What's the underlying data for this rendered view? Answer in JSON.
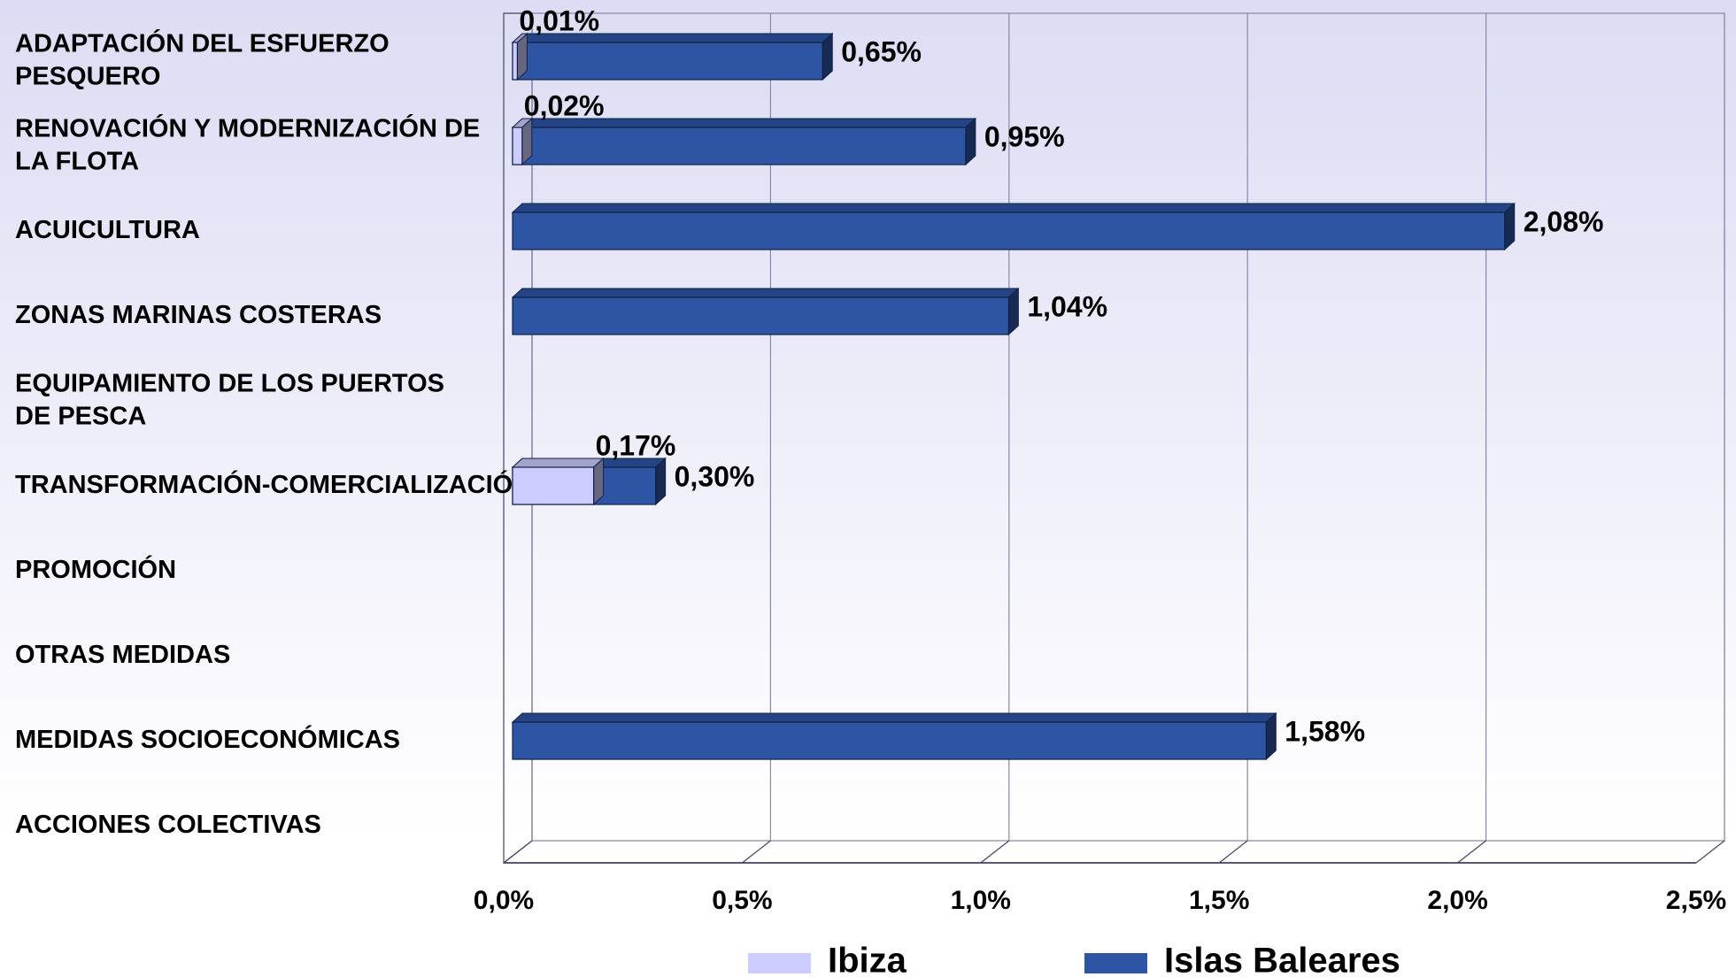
{
  "chart_data": {
    "type": "bar3d",
    "categories": [
      "ADAPTACIÓN DEL ESFUERZO PESQUERO",
      "RENOVACIÓN Y MODERNIZACIÓN DE LA FLOTA",
      "ACUICULTURA",
      "ZONAS MARINAS COSTERAS",
      "EQUIPAMIENTO DE LOS PUERTOS DE PESCA",
      "TRANSFORMACIÓN-COMERCIALIZACIÓN",
      "PROMOCIÓN",
      "OTRAS MEDIDAS",
      "MEDIDAS SOCIOECONÓMICAS",
      "ACCIONES COLECTIVAS"
    ],
    "series": [
      {
        "name": "Ibiza",
        "color": "#ccccff",
        "values": [
          0.01,
          0.02,
          null,
          null,
          null,
          0.17,
          null,
          null,
          null,
          null
        ],
        "value_labels": [
          "0,01%",
          "0,02%",
          null,
          null,
          null,
          "0,17%",
          null,
          null,
          null,
          null
        ]
      },
      {
        "name": "Islas Baleares",
        "color": "#2e55a4",
        "values": [
          0.65,
          0.95,
          2.08,
          1.04,
          null,
          0.3,
          null,
          null,
          1.58,
          null
        ],
        "value_labels": [
          "0,65%",
          "0,95%",
          "2,08%",
          "1,04%",
          null,
          "0,30%",
          null,
          null,
          "1,58%",
          null
        ]
      }
    ],
    "xlim": [
      0,
      2.5
    ],
    "xticks": [
      {
        "value": 0,
        "label": "0,0%"
      },
      {
        "value": 0.5,
        "label": "0,5%"
      },
      {
        "value": 1,
        "label": "1,0%"
      },
      {
        "value": 1.5,
        "label": "1,5%"
      },
      {
        "value": 2,
        "label": "2,0%"
      },
      {
        "value": 2.5,
        "label": "2,5%"
      }
    ],
    "grid": true,
    "legend": "bottom"
  }
}
